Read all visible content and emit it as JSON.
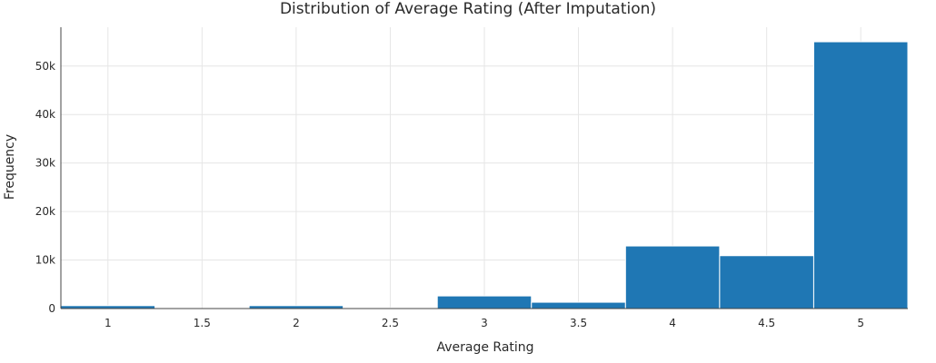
{
  "chart_data": {
    "type": "bar",
    "title": "Distribution of Average Rating (After Imputation)",
    "xlabel": "Average Rating",
    "ylabel": "Frequency",
    "bin_width": 0.5,
    "xlim": [
      0.75,
      5.25
    ],
    "ylim": [
      0,
      58000
    ],
    "x_ticks": [
      1,
      1.5,
      2,
      2.5,
      3,
      3.5,
      4,
      4.5,
      5
    ],
    "x_tick_labels": [
      "1",
      "1.5",
      "2",
      "2.5",
      "3",
      "3.5",
      "4",
      "4.5",
      "5"
    ],
    "y_ticks": [
      0,
      10000,
      20000,
      30000,
      40000,
      50000
    ],
    "y_tick_labels": [
      "0",
      "10k",
      "20k",
      "30k",
      "40k",
      "50k"
    ],
    "grid": true,
    "bar_color": "#1f77b4",
    "bins": [
      {
        "center": 1.0,
        "value": 600
      },
      {
        "center": 1.5,
        "value": 0
      },
      {
        "center": 2.0,
        "value": 600
      },
      {
        "center": 2.5,
        "value": 150
      },
      {
        "center": 3.0,
        "value": 2600
      },
      {
        "center": 3.5,
        "value": 1300
      },
      {
        "center": 4.0,
        "value": 12900
      },
      {
        "center": 4.5,
        "value": 10900
      },
      {
        "center": 5.0,
        "value": 55000
      }
    ]
  }
}
